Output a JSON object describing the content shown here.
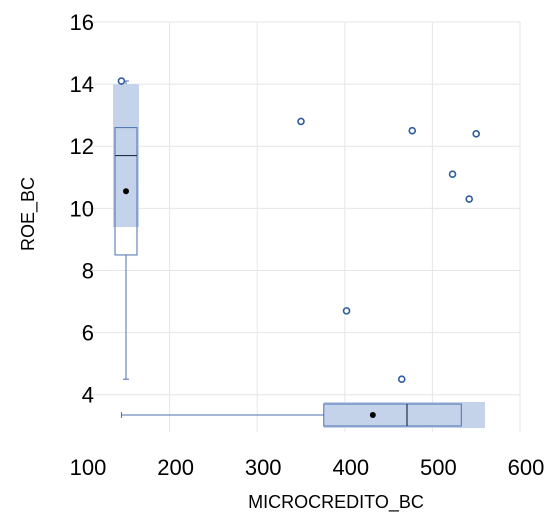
{
  "chart_data": {
    "type": "scatter",
    "xlabel": "MICROCREDITO_BC",
    "ylabel": "ROE_BC",
    "xlim": [
      100,
      600
    ],
    "ylim": [
      2.8,
      16
    ],
    "x_ticks": [
      100,
      200,
      300,
      400,
      500,
      600
    ],
    "y_ticks": [
      4,
      6,
      8,
      10,
      12,
      14,
      16
    ],
    "grid": true,
    "points": [
      {
        "x": 145,
        "y": 14.1
      },
      {
        "x": 350,
        "y": 12.8
      },
      {
        "x": 477,
        "y": 12.5
      },
      {
        "x": 550,
        "y": 12.4
      },
      {
        "x": 523,
        "y": 11.1
      },
      {
        "x": 542,
        "y": 10.3
      },
      {
        "x": 402,
        "y": 6.7
      },
      {
        "x": 465,
        "y": 4.5
      }
    ],
    "y_boxplot": {
      "min": 4.5,
      "q1": 8.5,
      "median": 11.7,
      "q3": 12.6,
      "max": 14.1,
      "mean": 10.55,
      "ci_low": 9.4,
      "ci_high": 14.0
    },
    "x_boxplot": {
      "min": 145,
      "q1": 376,
      "median": 471,
      "q3": 533,
      "max": 550,
      "mean": 432,
      "ci_low": 376,
      "ci_high": 560
    },
    "colors": {
      "points": "#2e5c9e",
      "box_stroke": "#4a6fb0",
      "box_fill": "#c5d3ea",
      "grid": "#e6e6e6",
      "mean": "#000000"
    }
  }
}
